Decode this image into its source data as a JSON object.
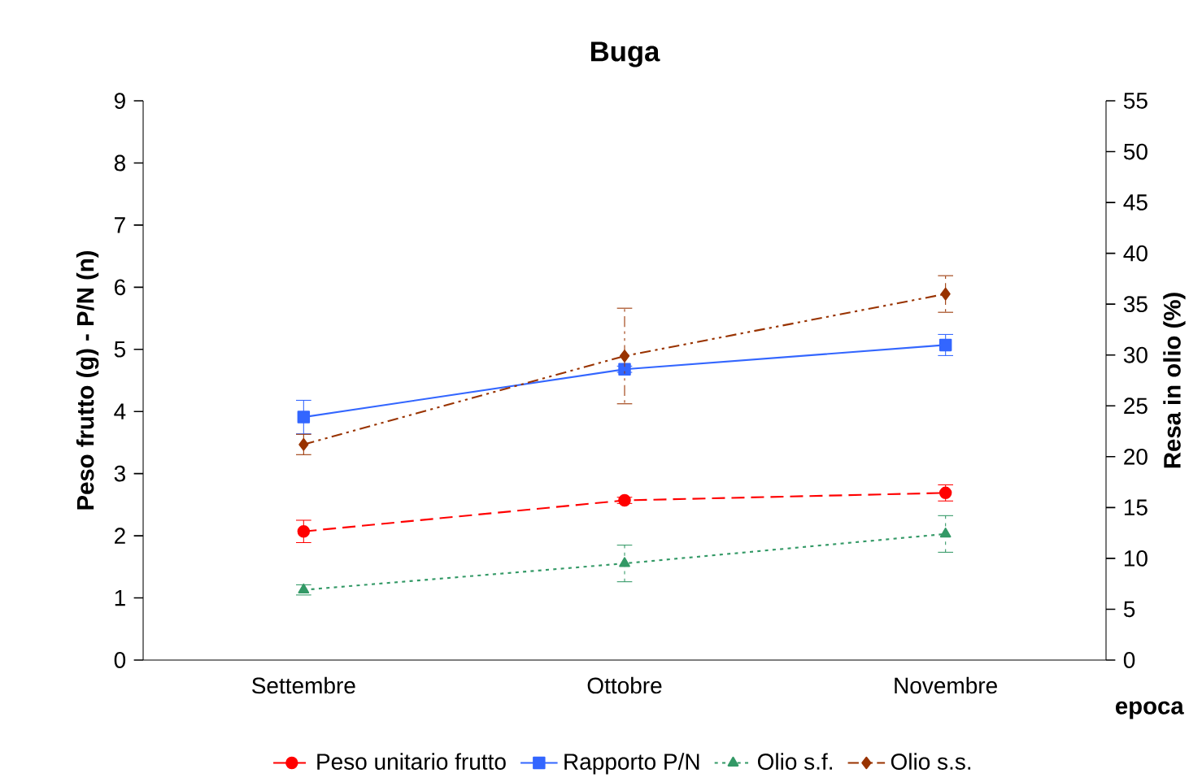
{
  "chart_data": {
    "type": "line",
    "title": "Buga",
    "xlabel": "epoca",
    "ylabel": "Peso frutto (g) - P/N (n)",
    "y2label": "Resa in olio (%)",
    "categories": [
      "Settembre",
      "Ottobre",
      "Novembre"
    ],
    "ylim": [
      0,
      9
    ],
    "yticks": [
      0,
      1,
      2,
      3,
      4,
      5,
      6,
      7,
      8,
      9
    ],
    "y2lim": [
      0,
      55
    ],
    "y2ticks": [
      0,
      5,
      10,
      15,
      20,
      25,
      30,
      35,
      40,
      45,
      50,
      55
    ],
    "grid": false,
    "legend": "bottom",
    "series": [
      {
        "name": "Peso unitario frutto",
        "color": "#ff0000",
        "marker": "circle",
        "line_style": "dashed",
        "values": [
          2.07,
          2.57,
          2.69
        ],
        "errors": [
          0.18,
          0.05,
          0.13
        ]
      },
      {
        "name": "Rapporto P/N",
        "color": "#3366ff",
        "marker": "square",
        "line_style": "solid",
        "values": [
          3.91,
          4.68,
          5.07
        ],
        "errors": [
          0.27,
          0.05,
          0.17
        ]
      },
      {
        "name": "Olio s.f.",
        "color": "#339966",
        "marker": "triangle",
        "line_style": "dotted",
        "axis": "y2",
        "values": [
          6.9,
          9.5,
          12.4
        ],
        "errors": [
          0.5,
          1.8,
          1.8
        ]
      },
      {
        "name": "Olio s.s.",
        "color": "#993300",
        "marker": "diamond",
        "line_style": "dashdot",
        "axis": "y2",
        "values": [
          21.2,
          29.9,
          36.0
        ],
        "errors": [
          1.0,
          4.7,
          1.8
        ]
      }
    ]
  }
}
